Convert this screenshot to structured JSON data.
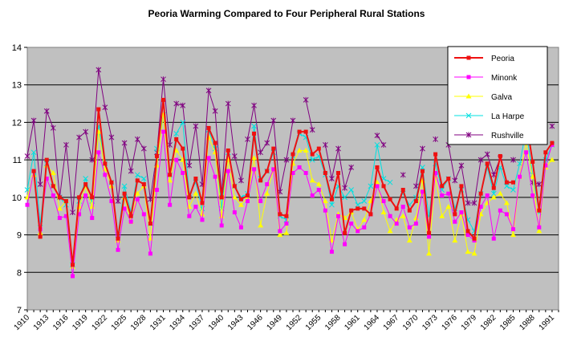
{
  "chart_data": {
    "type": "line",
    "title": "Peoria Warming Compared to Four Peripheral Rural Stations",
    "xlabel": "",
    "ylabel": "",
    "ylim": [
      7,
      14
    ],
    "yticks": [
      7,
      8,
      9,
      10,
      11,
      12,
      13,
      14
    ],
    "xlim": [
      1910,
      1992
    ],
    "xticks": [
      1910,
      1913,
      1916,
      1919,
      1922,
      1925,
      1928,
      1931,
      1934,
      1937,
      1940,
      1943,
      1946,
      1949,
      1952,
      1955,
      1958,
      1961,
      1964,
      1967,
      1970,
      1973,
      1976,
      1979,
      1982,
      1985,
      1988,
      1991
    ],
    "grid": "horizontal",
    "plot_background": "#c0c0c0",
    "legend_position": "top-right",
    "series": [
      {
        "name": "Peoria",
        "color": "#ee1111",
        "marker": "square",
        "x_start": 1910,
        "values": [
          null,
          10.7,
          8.95,
          11.0,
          10.3,
          10.0,
          9.9,
          8.2,
          10.0,
          10.35,
          10.0,
          12.35,
          10.9,
          10.4,
          8.9,
          10.1,
          9.5,
          10.45,
          10.35,
          9.3,
          11.1,
          12.6,
          10.6,
          11.55,
          11.3,
          10.0,
          10.5,
          9.85,
          11.85,
          11.45,
          10.0,
          11.25,
          10.3,
          9.95,
          10.05,
          11.7,
          10.45,
          10.7,
          11.3,
          9.55,
          9.5,
          11.15,
          11.75,
          11.75,
          11.15,
          11.3,
          10.65,
          9.95,
          10.65,
          9.05,
          9.65,
          9.7,
          9.7,
          9.55,
          10.8,
          10.3,
          9.95,
          9.7,
          10.2,
          9.65,
          9.9,
          10.7,
          9.05,
          11.15,
          10.3,
          10.5,
          9.55,
          10.3,
          9.1,
          8.9,
          10.1,
          10.9,
          10.25,
          11.1,
          10.4,
          10.4,
          null,
          12.05,
          10.95,
          9.65,
          11.2,
          11.45
        ]
      },
      {
        "name": "Minonk",
        "color": "#ff00ff",
        "marker": "square",
        "x_start": 1910,
        "values": [
          9.8,
          10.7,
          9.15,
          10.5,
          10.05,
          9.45,
          9.5,
          7.9,
          9.55,
          10.05,
          9.45,
          11.2,
          10.6,
          9.9,
          8.6,
          9.7,
          9.35,
          9.95,
          9.55,
          8.5,
          10.2,
          11.75,
          9.8,
          11.0,
          10.65,
          9.5,
          9.75,
          9.4,
          11.05,
          10.55,
          9.25,
          10.7,
          9.6,
          9.2,
          9.9,
          10.75,
          9.9,
          10.35,
          10.75,
          9.1,
          9.3,
          10.65,
          10.8,
          10.65,
          10.05,
          10.2,
          9.65,
          8.55,
          9.5,
          8.75,
          9.3,
          9.1,
          9.2,
          9.55,
          10.3,
          9.9,
          9.5,
          9.3,
          9.75,
          9.2,
          9.3,
          10.15,
          8.95,
          10.65,
          10.05,
          10.1,
          9.35,
          9.6,
          9.0,
          8.85,
          9.75,
          10.05,
          8.9,
          9.65,
          9.55,
          9.15,
          10.55,
          11.2,
          10.05,
          9.2,
          10.85,
          11.4
        ]
      },
      {
        "name": "Galva",
        "color": "#ffff00",
        "marker": "triangle",
        "x_start": 1910,
        "values": [
          10.0,
          10.6,
          9.05,
          10.85,
          10.65,
          9.7,
          9.9,
          8.15,
          9.75,
          10.3,
          9.75,
          11.75,
          10.75,
          10.3,
          8.85,
          10.0,
          9.35,
          10.1,
          10.3,
          8.9,
          10.85,
          12.2,
          10.45,
          11.25,
          11.0,
          9.75,
          10.1,
          9.55,
          11.6,
          11.2,
          9.5,
          11.0,
          10.0,
          9.8,
          10.0,
          11.05,
          9.25,
          10.1,
          10.75,
          9.0,
          9.05,
          10.9,
          11.25,
          11.25,
          10.45,
          10.35,
          9.9,
          8.85,
          9.55,
          9.45,
          9.6,
          9.15,
          9.4,
          9.9,
          10.4,
          9.6,
          9.1,
          9.4,
          9.5,
          8.85,
          9.45,
          10.45,
          8.5,
          10.55,
          9.5,
          9.75,
          8.85,
          9.55,
          8.55,
          8.5,
          9.55,
          9.85,
          10.0,
          10.1,
          9.85,
          9.0,
          10.55,
          11.45,
          10.55,
          9.1,
          10.8,
          11.0
        ]
      },
      {
        "name": "La Harpe",
        "color": "#00e0e0",
        "marker": "cross",
        "x_start": 1910,
        "values": [
          10.2,
          11.2,
          9.3,
          10.9,
          10.3,
          10.0,
          9.8,
          8.2,
          9.9,
          10.5,
          9.9,
          11.9,
          10.9,
          10.4,
          9.0,
          10.3,
          9.6,
          10.6,
          10.5,
          9.3,
          11.3,
          12.2,
          10.6,
          11.7,
          12.0,
          10.1,
          10.4,
          9.7,
          11.8,
          11.3,
          9.7,
          11.2,
          10.3,
          10.0,
          10.1,
          11.9,
          10.5,
          10.7,
          11.2,
          9.5,
          9.4,
          11.1,
          11.7,
          11.6,
          11.0,
          11.1,
          10.6,
          9.8,
          10.3,
          10.0,
          10.2,
          9.8,
          9.9,
          10.3,
          11.4,
          10.5,
          10.4,
          null,
          10.1,
          9.8,
          10.0,
          10.8,
          9.5,
          10.9,
          10.2,
          10.5,
          9.7,
          10.2,
          9.4,
          9.1,
          10.1,
          10.8,
          10.1,
          10.8,
          10.3,
          10.2,
          10.9,
          11.8,
          10.6,
          9.6,
          11.0,
          11.4
        ]
      },
      {
        "name": "Rushville",
        "color": "#800080",
        "marker": "asterisk",
        "x_start": 1910,
        "values": [
          11.1,
          12.05,
          10.35,
          12.3,
          11.85,
          10.0,
          11.4,
          9.6,
          11.6,
          11.75,
          11.0,
          13.4,
          12.4,
          11.6,
          9.9,
          11.45,
          10.7,
          11.55,
          11.3,
          9.95,
          11.2,
          13.15,
          11.4,
          12.5,
          12.45,
          10.85,
          11.9,
          10.35,
          12.85,
          12.3,
          10.1,
          12.5,
          11.1,
          10.45,
          11.55,
          12.45,
          11.2,
          11.45,
          12.05,
          10.15,
          11.0,
          12.05,
          null,
          12.6,
          11.8,
          null,
          11.4,
          10.5,
          11.3,
          10.25,
          10.8,
          null,
          null,
          null,
          11.65,
          11.4,
          null,
          null,
          10.6,
          null,
          10.3,
          11.3,
          null,
          11.55,
          null,
          11.4,
          10.45,
          10.85,
          9.85,
          9.85,
          11.0,
          11.15,
          10.6,
          11.05,
          null,
          11.0,
          null,
          null,
          10.4,
          10.35,
          null,
          11.9
        ]
      }
    ]
  }
}
